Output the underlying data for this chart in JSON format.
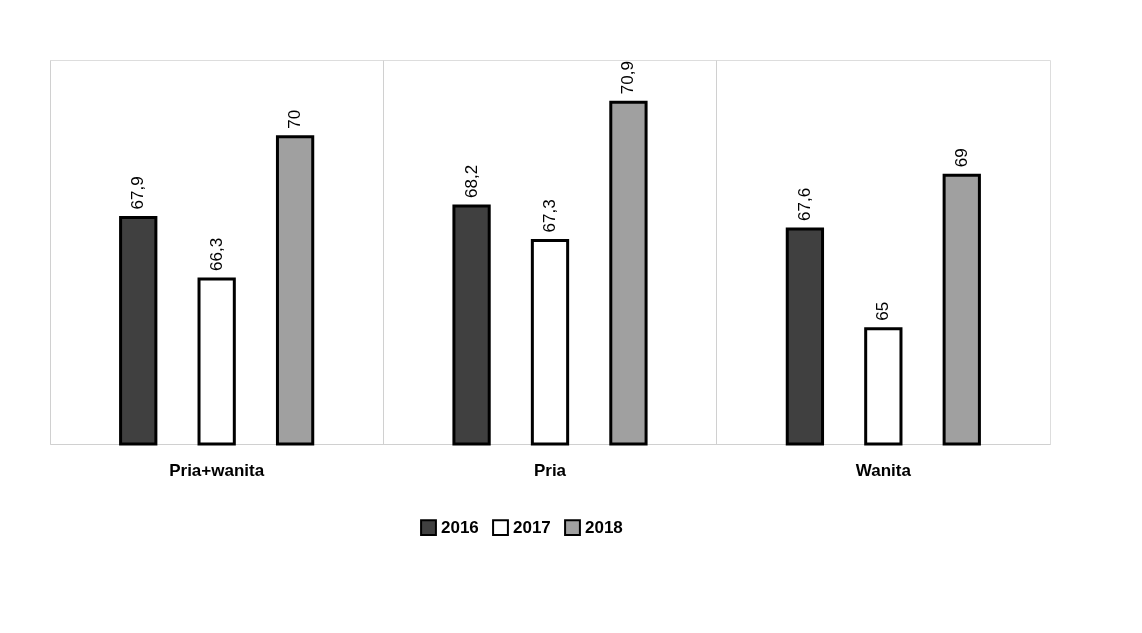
{
  "chart_data": {
    "type": "bar",
    "categories": [
      "Pria+wanita",
      "Pria",
      "Wanita"
    ],
    "series": [
      {
        "name": "2016",
        "color": "#404040",
        "values": [
          67.9,
          68.2,
          67.6
        ],
        "value_labels": [
          "67,9",
          "68,2",
          "67,6"
        ]
      },
      {
        "name": "2017",
        "color": "#ffffff",
        "values": [
          66.3,
          67.3,
          65
        ],
        "value_labels": [
          "66,3",
          "67,3",
          "65"
        ]
      },
      {
        "name": "2018",
        "color": "#a0a0a0",
        "values": [
          70,
          70.9,
          69
        ],
        "value_labels": [
          "70",
          "70,9",
          "69"
        ]
      }
    ],
    "ylim": [
      62,
      72
    ],
    "tick_labels": "x",
    "grid": "x",
    "legend": "bottom"
  }
}
